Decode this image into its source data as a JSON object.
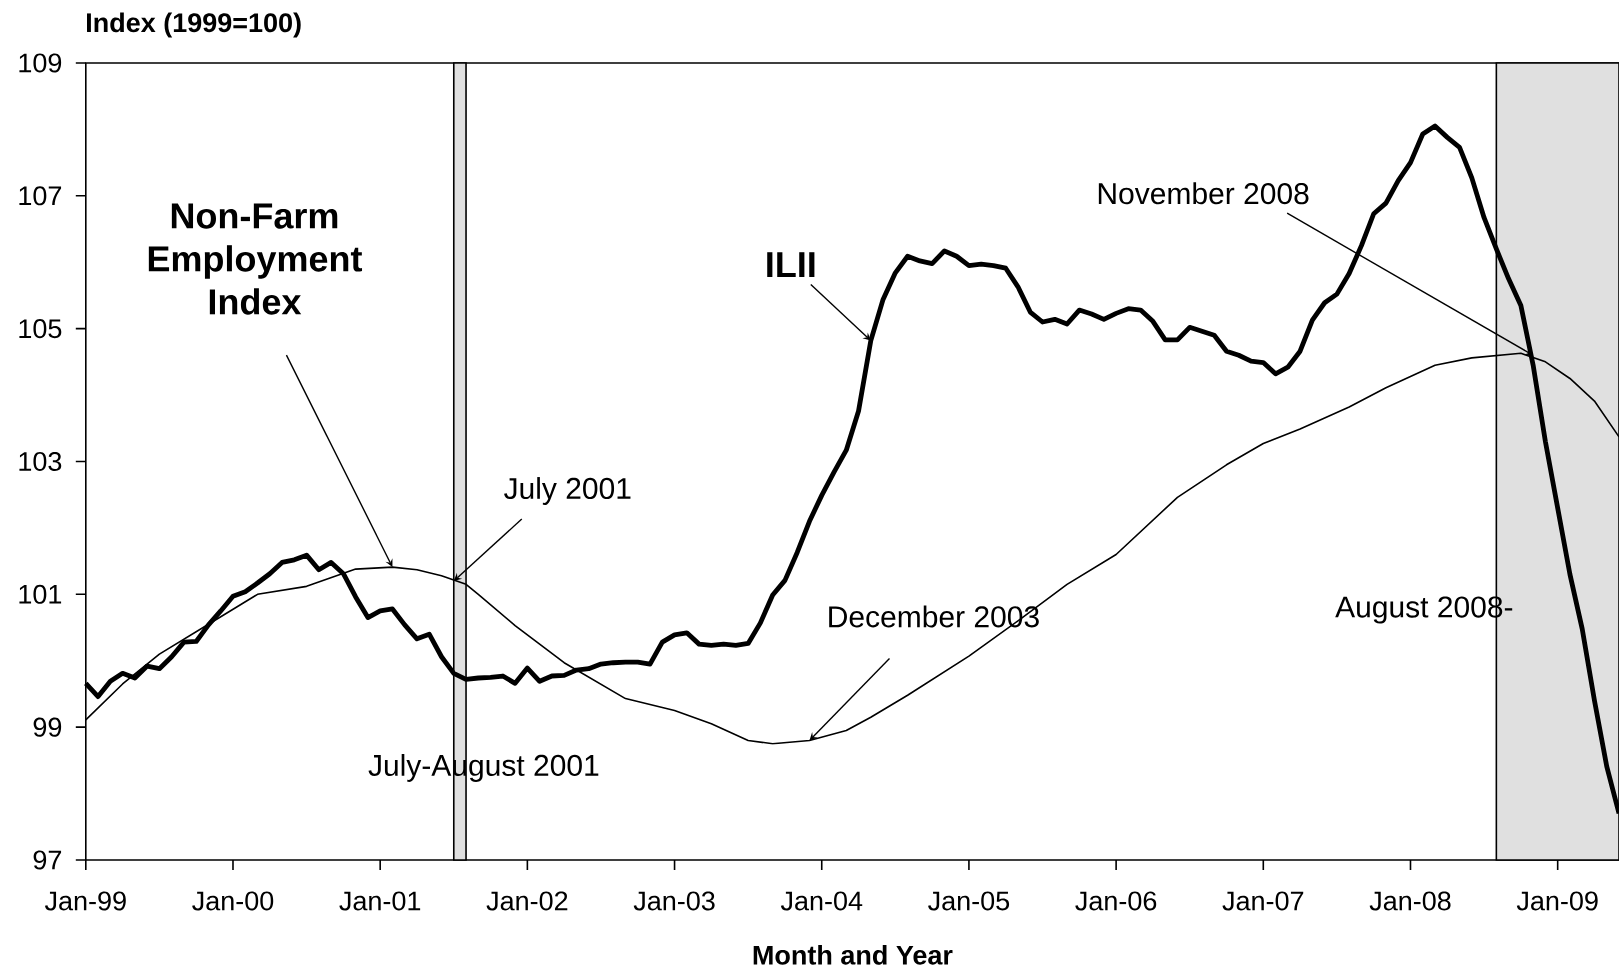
{
  "chart_data": {
    "type": "line",
    "xlabel": "Month and Year",
    "ylabel": "Index (1999=100)",
    "x": [
      "1999-01",
      "1999-02",
      "1999-03",
      "1999-04",
      "1999-05",
      "1999-06",
      "1999-07",
      "1999-08",
      "1999-09",
      "1999-10",
      "1999-11",
      "1999-12",
      "2000-01",
      "2000-02",
      "2000-03",
      "2000-04",
      "2000-05",
      "2000-06",
      "2000-07",
      "2000-08",
      "2000-09",
      "2000-10",
      "2000-11",
      "2000-12",
      "2001-01",
      "2001-02",
      "2001-03",
      "2001-04",
      "2001-05",
      "2001-06",
      "2001-07",
      "2001-08",
      "2001-09",
      "2001-10",
      "2001-11",
      "2001-12",
      "2002-01",
      "2002-02",
      "2002-03",
      "2002-04",
      "2002-05",
      "2002-06",
      "2002-07",
      "2002-08",
      "2002-09",
      "2002-10",
      "2002-11",
      "2002-12",
      "2003-01",
      "2003-02",
      "2003-03",
      "2003-04",
      "2003-05",
      "2003-06",
      "2003-07",
      "2003-08",
      "2003-09",
      "2003-10",
      "2003-11",
      "2003-12",
      "2004-01",
      "2004-02",
      "2004-03",
      "2004-04",
      "2004-05",
      "2004-06",
      "2004-07",
      "2004-08",
      "2004-09",
      "2004-10",
      "2004-11",
      "2004-12",
      "2005-01",
      "2005-02",
      "2005-03",
      "2005-04",
      "2005-05",
      "2005-06",
      "2005-07",
      "2005-08",
      "2005-09",
      "2005-10",
      "2005-11",
      "2005-12",
      "2006-01",
      "2006-02",
      "2006-03",
      "2006-04",
      "2006-05",
      "2006-06",
      "2006-07",
      "2006-08",
      "2006-09",
      "2006-10",
      "2006-11",
      "2006-12",
      "2007-01",
      "2007-02",
      "2007-03",
      "2007-04",
      "2007-05",
      "2007-06",
      "2007-07",
      "2007-08",
      "2007-09",
      "2007-10",
      "2007-11",
      "2007-12",
      "2008-01",
      "2008-02",
      "2008-03",
      "2008-04",
      "2008-05",
      "2008-06",
      "2008-07",
      "2008-08",
      "2008-09",
      "2008-10",
      "2008-11",
      "2008-12",
      "2009-01",
      "2009-02",
      "2009-03",
      "2009-04",
      "2009-05",
      "2009-06"
    ],
    "series": [
      {
        "name": "ILII",
        "color": "#000000",
        "values": [
          99.66,
          99.46,
          99.69,
          99.81,
          99.74,
          99.92,
          99.88,
          100.06,
          100.28,
          100.29,
          100.54,
          100.75,
          100.97,
          101.04,
          101.17,
          101.31,
          101.48,
          101.52,
          101.59,
          101.37,
          101.48,
          101.31,
          100.96,
          100.65,
          100.75,
          100.78,
          100.54,
          100.33,
          100.4,
          100.06,
          99.81,
          99.72,
          99.74,
          99.75,
          99.77,
          99.66,
          99.89,
          99.69,
          99.77,
          99.78,
          99.86,
          99.88,
          99.95,
          99.97,
          99.98,
          99.98,
          99.95,
          100.28,
          100.39,
          100.42,
          100.25,
          100.23,
          100.25,
          100.23,
          100.26,
          100.57,
          100.99,
          101.21,
          101.63,
          102.1,
          102.49,
          102.84,
          103.17,
          103.76,
          104.82,
          105.44,
          105.84,
          106.09,
          106.02,
          105.98,
          106.17,
          106.09,
          105.95,
          105.97,
          105.95,
          105.91,
          105.63,
          105.25,
          105.1,
          105.14,
          105.07,
          105.28,
          105.22,
          105.14,
          105.23,
          105.3,
          105.28,
          105.11,
          104.83,
          104.83,
          105.02,
          104.96,
          104.9,
          104.66,
          104.6,
          104.51,
          104.49,
          104.32,
          104.42,
          104.66,
          105.13,
          105.39,
          105.52,
          105.83,
          106.25,
          106.73,
          106.89,
          107.23,
          107.5,
          107.93,
          108.05,
          107.88,
          107.73,
          107.27,
          106.67,
          106.2,
          105.75,
          105.35,
          104.45,
          103.3,
          102.3,
          101.3,
          100.48,
          99.4,
          98.41,
          97.7
        ]
      },
      {
        "name": "Non-Farm Employment Index",
        "color": "#000000",
        "x": [
          "1999-01",
          "1999-04",
          "1999-07",
          "1999-11",
          "2000-03",
          "2000-07",
          "2000-11",
          "2001-02",
          "2001-04",
          "2001-06",
          "2001-08",
          "2001-09",
          "2001-12",
          "2002-04",
          "2002-09",
          "2003-01",
          "2003-04",
          "2003-07",
          "2003-09",
          "2003-12",
          "2004-03",
          "2004-05",
          "2004-08",
          "2005-01",
          "2005-05",
          "2005-09",
          "2006-01",
          "2006-06",
          "2006-10",
          "2007-01",
          "2007-04",
          "2007-08",
          "2007-11",
          "2008-03",
          "2008-06",
          "2008-10",
          "2008-12",
          "2009-02",
          "2009-04",
          "2009-06"
        ],
        "values": [
          99.11,
          99.65,
          100.1,
          100.55,
          101.0,
          101.12,
          101.38,
          101.41,
          101.37,
          101.28,
          101.15,
          101.0,
          100.53,
          99.97,
          99.43,
          99.25,
          99.05,
          98.8,
          98.75,
          98.8,
          98.95,
          99.15,
          99.48,
          100.07,
          100.6,
          101.15,
          101.6,
          102.46,
          102.95,
          103.27,
          103.49,
          103.82,
          104.11,
          104.45,
          104.56,
          104.63,
          104.5,
          104.25,
          103.91,
          103.37
        ]
      }
    ],
    "xlim": [
      "1999-01",
      "2009-06"
    ],
    "xticks": [
      {
        "value": "1999-01",
        "label": "Jan-99"
      },
      {
        "value": "2000-01",
        "label": "Jan-00"
      },
      {
        "value": "2001-01",
        "label": "Jan-01"
      },
      {
        "value": "2002-01",
        "label": "Jan-02"
      },
      {
        "value": "2003-01",
        "label": "Jan-03"
      },
      {
        "value": "2004-01",
        "label": "Jan-04"
      },
      {
        "value": "2005-01",
        "label": "Jan-05"
      },
      {
        "value": "2006-01",
        "label": "Jan-06"
      },
      {
        "value": "2007-01",
        "label": "Jan-07"
      },
      {
        "value": "2008-01",
        "label": "Jan-08"
      },
      {
        "value": "2009-01",
        "label": "Jan-09"
      }
    ],
    "ylim": [
      97,
      109
    ],
    "yticks": [
      97,
      99,
      101,
      103,
      105,
      107,
      109
    ],
    "bands": [
      {
        "axis": "x",
        "from": "2001-07",
        "to": "2001-08",
        "label": "July-August 2001",
        "color": "#e0e0e0"
      },
      {
        "axis": "x",
        "from": "2008-08",
        "to": "2009-06",
        "label": "August 2008-",
        "color": "#e0e0e0"
      }
    ],
    "annotations": [
      {
        "text": "July 2001",
        "x": "2001-07",
        "y": 101.2
      },
      {
        "text": "December 2003",
        "x": "2003-12",
        "y": 98.8
      },
      {
        "text": "November 2008",
        "x": "2008-11",
        "y": 104.6
      }
    ]
  }
}
